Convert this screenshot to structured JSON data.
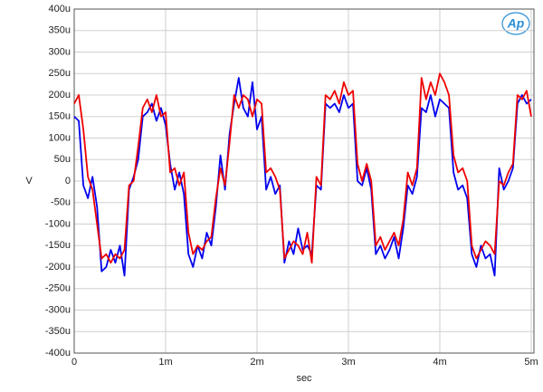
{
  "chart_data": {
    "type": "line",
    "logo_text": "Ap",
    "x_label": "sec",
    "y_label": "V",
    "xlim": [
      0,
      0.00503
    ],
    "ylim": [
      -0.0004,
      0.0004
    ],
    "grid": true,
    "xticks": [
      0,
      {
        "value": 0.001,
        "label": "1m"
      },
      {
        "value": 0.002,
        "label": "2m"
      },
      {
        "value": 0.003,
        "label": "3m"
      },
      {
        "value": 0.004,
        "label": "4m"
      },
      {
        "value": 0.005,
        "label": "5m"
      }
    ],
    "yticks": [
      {
        "value": -0.0004,
        "label": "-400u"
      },
      {
        "value": -0.00035,
        "label": "-350u"
      },
      {
        "value": -0.0003,
        "label": "-300u"
      },
      {
        "value": -0.00025,
        "label": "-250u"
      },
      {
        "value": -0.0002,
        "label": "-200u"
      },
      {
        "value": -0.00015,
        "label": "-150u"
      },
      {
        "value": -0.0001,
        "label": "-100u"
      },
      {
        "value": -5e-05,
        "label": "-50u"
      },
      0,
      {
        "value": 5e-05,
        "label": "50u"
      },
      {
        "value": 0.0001,
        "label": "100u"
      },
      {
        "value": 0.00015,
        "label": "150u"
      },
      {
        "value": 0.0002,
        "label": "200u"
      },
      {
        "value": 0.00025,
        "label": "250u"
      },
      {
        "value": 0.0003,
        "label": "300u"
      },
      {
        "value": 0.00035,
        "label": "350u"
      },
      {
        "value": 0.0004,
        "label": "400u"
      }
    ],
    "x": [
      0,
      5e-05,
      0.0001,
      0.00015,
      0.0002,
      0.00025,
      0.0003,
      0.00035,
      0.0004,
      0.00045,
      0.0005,
      0.00055,
      0.0006,
      0.00065,
      0.0007,
      0.00075,
      0.0008,
      0.00085,
      0.0009,
      0.00095,
      0.001,
      0.00105,
      0.0011,
      0.00115,
      0.0012,
      0.00125,
      0.0013,
      0.00135,
      0.0014,
      0.00145,
      0.0015,
      0.00155,
      0.0016,
      0.00165,
      0.0017,
      0.00175,
      0.0018,
      0.00185,
      0.0019,
      0.00195,
      0.002,
      0.00205,
      0.0021,
      0.00215,
      0.0022,
      0.00225,
      0.0023,
      0.00235,
      0.0024,
      0.00245,
      0.0025,
      0.00255,
      0.0026,
      0.00265,
      0.0027,
      0.00275,
      0.0028,
      0.00285,
      0.0029,
      0.00295,
      0.003,
      0.00305,
      0.0031,
      0.00315,
      0.0032,
      0.00325,
      0.0033,
      0.00335,
      0.0034,
      0.00345,
      0.0035,
      0.00355,
      0.0036,
      0.00365,
      0.0037,
      0.00375,
      0.0038,
      0.00385,
      0.0039,
      0.00395,
      0.004,
      0.00405,
      0.0041,
      0.00415,
      0.0042,
      0.00425,
      0.0043,
      0.00435,
      0.0044,
      0.00445,
      0.0045,
      0.00455,
      0.0046,
      0.00465,
      0.0047,
      0.00475,
      0.0048,
      0.00485,
      0.0049,
      0.00495,
      0.005
    ],
    "series": [
      {
        "color": "#0000ee",
        "values": [
          0.00015,
          0.00014,
          -1e-05,
          -4e-05,
          1e-05,
          -6e-05,
          -0.00021,
          -0.0002,
          -0.00016,
          -0.00019,
          -0.00015,
          -0.00022,
          -2e-05,
          1e-05,
          5e-05,
          0.00015,
          0.00016,
          0.00018,
          0.00014,
          0.00017,
          0.00013,
          4e-05,
          -2e-05,
          2e-05,
          -3e-05,
          -0.00017,
          -0.0002,
          -0.00015,
          -0.00018,
          -0.00012,
          -0.00015,
          -6e-05,
          6e-05,
          -2e-05,
          0.00011,
          0.00018,
          0.00024,
          0.00017,
          0.00015,
          0.00023,
          0.00012,
          0.00015,
          -2e-05,
          1e-05,
          -3e-05,
          -1e-05,
          -0.00019,
          -0.00014,
          -0.00017,
          -0.00011,
          -0.00016,
          -0.00015,
          -0.00017,
          -1e-05,
          -2e-05,
          0.00018,
          0.00017,
          0.00018,
          0.00016,
          0.0002,
          0.00017,
          0.00018,
          0,
          -1e-05,
          3e-05,
          -2e-05,
          -0.00017,
          -0.00015,
          -0.00018,
          -0.00016,
          -0.00013,
          -0.00018,
          -0.00011,
          -1e-05,
          -3e-05,
          1e-05,
          0.00017,
          0.00016,
          0.0002,
          0.00015,
          0.00019,
          0.00018,
          0.00017,
          2e-05,
          -2e-05,
          -1e-05,
          -4e-05,
          -0.00017,
          -0.0002,
          -0.00015,
          -0.00018,
          -0.00017,
          -0.00022,
          3e-05,
          -2e-05,
          0,
          3e-05,
          0.00018,
          0.0002,
          0.00018,
          0.00019
        ]
      },
      {
        "color": "#ee0000",
        "values": [
          0.00018,
          0.0002,
          0.00012,
          1e-05,
          -2e-05,
          -0.0001,
          -0.00018,
          -0.00017,
          -0.00019,
          -0.00017,
          -0.00018,
          -0.00016,
          -1e-05,
          0,
          8e-05,
          0.00017,
          0.00019,
          0.00016,
          0.0002,
          0.00015,
          0.00016,
          2e-05,
          3e-05,
          -1e-05,
          2e-05,
          -0.00012,
          -0.00017,
          -0.00015,
          -0.00016,
          -0.00014,
          -0.00013,
          -4e-05,
          3e-05,
          -1e-05,
          9e-05,
          0.0002,
          0.00017,
          0.0002,
          0.00019,
          0.00015,
          0.00019,
          0.00018,
          2e-05,
          3e-05,
          1e-05,
          -2e-05,
          -0.00018,
          -0.00016,
          -0.00014,
          -0.00015,
          -0.00017,
          -0.00012,
          -0.00019,
          1e-05,
          -1e-05,
          0.0002,
          0.00019,
          0.00021,
          0.00018,
          0.00023,
          0.0002,
          0.00021,
          4e-05,
          0,
          4e-05,
          0,
          -0.00015,
          -0.00013,
          -0.00016,
          -0.00014,
          -0.00012,
          -0.00015,
          -9e-05,
          2e-05,
          -1e-05,
          3e-05,
          0.00024,
          0.00019,
          0.00023,
          0.0002,
          0.00025,
          0.00023,
          0.0002,
          6e-05,
          2e-05,
          3e-05,
          0,
          -0.00015,
          -0.00018,
          -0.00016,
          -0.00014,
          -0.00015,
          -0.00017,
          0,
          -1e-05,
          2e-05,
          4e-05,
          0.0002,
          0.00019,
          0.00021,
          0.00015
        ]
      }
    ]
  }
}
